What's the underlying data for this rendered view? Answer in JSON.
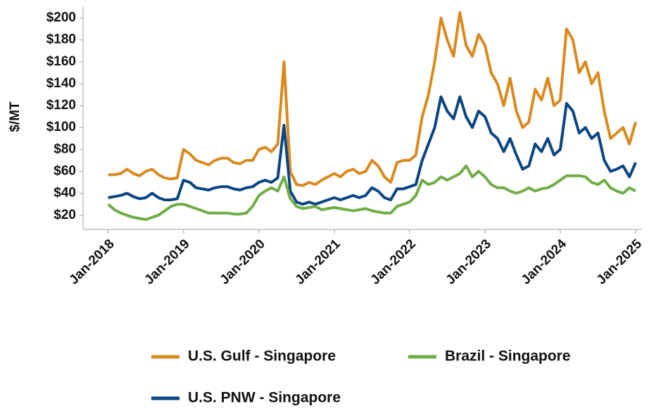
{
  "chart_data": {
    "type": "line",
    "y_label": "$/MT",
    "x": [
      "2018-01",
      "2018-02",
      "2018-03",
      "2018-04",
      "2018-05",
      "2018-06",
      "2018-07",
      "2018-08",
      "2018-09",
      "2018-10",
      "2018-11",
      "2018-12",
      "2019-01",
      "2019-02",
      "2019-03",
      "2019-04",
      "2019-05",
      "2019-06",
      "2019-07",
      "2019-08",
      "2019-09",
      "2019-10",
      "2019-11",
      "2019-12",
      "2020-01",
      "2020-02",
      "2020-03",
      "2020-04",
      "2020-05",
      "2020-06",
      "2020-07",
      "2020-08",
      "2020-09",
      "2020-10",
      "2020-11",
      "2020-12",
      "2021-01",
      "2021-02",
      "2021-03",
      "2021-04",
      "2021-05",
      "2021-06",
      "2021-07",
      "2021-08",
      "2021-09",
      "2021-10",
      "2021-11",
      "2021-12",
      "2022-01",
      "2022-02",
      "2022-03",
      "2022-04",
      "2022-05",
      "2022-06",
      "2022-07",
      "2022-08",
      "2022-09",
      "2022-10",
      "2022-11",
      "2022-12",
      "2023-01",
      "2023-02",
      "2023-03",
      "2023-04",
      "2023-05",
      "2023-06",
      "2023-07",
      "2023-08",
      "2023-09",
      "2023-10",
      "2023-11",
      "2023-12",
      "2024-01",
      "2024-02",
      "2024-03",
      "2024-04",
      "2024-05",
      "2024-06",
      "2024-07",
      "2024-08",
      "2024-09",
      "2024-10",
      "2024-11",
      "2024-12",
      "2025-01"
    ],
    "series": [
      {
        "name": "U.S. Gulf - Singapore",
        "color": "#d98a1f",
        "values": [
          57,
          57,
          58,
          62,
          58,
          56,
          60,
          62,
          57,
          54,
          53,
          54,
          80,
          76,
          70,
          68,
          66,
          70,
          72,
          72,
          68,
          67,
          70,
          70,
          80,
          82,
          78,
          85,
          160,
          60,
          48,
          47,
          50,
          48,
          52,
          55,
          58,
          55,
          60,
          62,
          58,
          60,
          70,
          65,
          55,
          50,
          68,
          70,
          70,
          75,
          110,
          130,
          160,
          200,
          180,
          165,
          205,
          175,
          165,
          185,
          175,
          150,
          140,
          120,
          145,
          115,
          100,
          105,
          135,
          125,
          145,
          120,
          125,
          190,
          180,
          150,
          160,
          140,
          150,
          115,
          90,
          95,
          100,
          85,
          105
        ]
      },
      {
        "name": "Brazil - Singapore",
        "color": "#70ad47",
        "values": [
          30,
          25,
          22,
          20,
          18,
          17,
          16,
          18,
          20,
          24,
          28,
          30,
          30,
          28,
          26,
          24,
          22,
          22,
          22,
          22,
          21,
          21,
          22,
          28,
          38,
          42,
          45,
          42,
          55,
          35,
          28,
          26,
          27,
          28,
          25,
          26,
          27,
          26,
          25,
          24,
          25,
          26,
          24,
          23,
          22,
          22,
          28,
          30,
          32,
          38,
          52,
          48,
          50,
          55,
          52,
          55,
          58,
          65,
          55,
          60,
          55,
          48,
          45,
          45,
          42,
          40,
          42,
          45,
          42,
          44,
          45,
          48,
          52,
          56,
          56,
          56,
          55,
          50,
          48,
          52,
          45,
          42,
          40,
          45,
          42
        ]
      },
      {
        "name": "U.S. PNW - Singapore",
        "color": "#0b4582",
        "values": [
          36,
          37,
          38,
          40,
          37,
          35,
          36,
          40,
          36,
          34,
          34,
          35,
          52,
          50,
          45,
          44,
          43,
          45,
          46,
          46,
          44,
          43,
          45,
          46,
          50,
          52,
          50,
          54,
          102,
          42,
          32,
          30,
          32,
          30,
          32,
          34,
          36,
          34,
          36,
          38,
          36,
          38,
          45,
          42,
          36,
          34,
          44,
          44,
          46,
          48,
          70,
          85,
          100,
          128,
          115,
          108,
          128,
          110,
          100,
          115,
          110,
          95,
          90,
          78,
          90,
          75,
          62,
          65,
          85,
          78,
          90,
          75,
          80,
          122,
          115,
          95,
          100,
          90,
          95,
          70,
          60,
          62,
          65,
          55,
          68
        ]
      }
    ],
    "xlim": [
      "2017-09",
      "2025-02"
    ],
    "xticks": [
      {
        "value": "2018-01",
        "label": "Jan-2018"
      },
      {
        "value": "2019-01",
        "label": "Jan-2019"
      },
      {
        "value": "2020-01",
        "label": "Jan-2020"
      },
      {
        "value": "2021-01",
        "label": "Jan-2021"
      },
      {
        "value": "2022-01",
        "label": "Jan-2022"
      },
      {
        "value": "2023-01",
        "label": "Jan-2023"
      },
      {
        "value": "2024-01",
        "label": "Jan-2024"
      },
      {
        "value": "2025-01",
        "label": "Jan-2025"
      }
    ],
    "ylim": [
      7,
      210
    ],
    "yticks": [
      {
        "value": 20,
        "label": "$20"
      },
      {
        "value": 40,
        "label": "$40"
      },
      {
        "value": 60,
        "label": "$60"
      },
      {
        "value": 80,
        "label": "$80"
      },
      {
        "value": 100,
        "label": "$100"
      },
      {
        "value": 120,
        "label": "$120"
      },
      {
        "value": 140,
        "label": "$140"
      },
      {
        "value": 160,
        "label": "$160"
      },
      {
        "value": 180,
        "label": "$180"
      },
      {
        "value": 200,
        "label": "$200"
      }
    ]
  }
}
